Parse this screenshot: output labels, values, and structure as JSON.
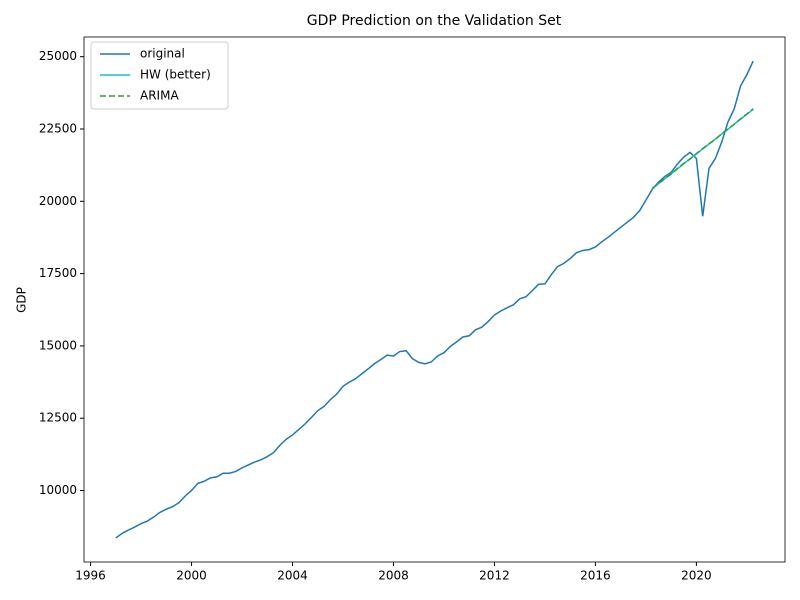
{
  "chart_data": {
    "type": "line",
    "title": "GDP Prediction on the Validation Set",
    "ylabel": "GDP",
    "xlim": [
      1995.74,
      2023.51
    ],
    "ylim": [
      7530,
      25680
    ],
    "xticks": [
      1996,
      2000,
      2004,
      2008,
      2012,
      2016,
      2020
    ],
    "yticks": [
      10000,
      12500,
      15000,
      17500,
      20000,
      22500,
      25000
    ],
    "grid": false,
    "legend": "upper left",
    "series": [
      {
        "name": "original",
        "color": "#1f77b4",
        "linestyle": "solid",
        "x": [
          1997,
          1997.25,
          1997.5,
          1997.75,
          1998,
          1998.25,
          1998.5,
          1998.75,
          1999,
          1999.25,
          1999.5,
          1999.75,
          2000,
          2000.25,
          2000.5,
          2000.75,
          2001,
          2001.25,
          2001.5,
          2001.75,
          2002,
          2002.25,
          2002.5,
          2002.75,
          2003,
          2003.25,
          2003.5,
          2003.75,
          2004,
          2004.25,
          2004.5,
          2004.75,
          2005,
          2005.25,
          2005.5,
          2005.75,
          2006,
          2006.25,
          2006.5,
          2006.75,
          2007,
          2007.25,
          2007.5,
          2007.75,
          2008,
          2008.25,
          2008.5,
          2008.75,
          2009,
          2009.25,
          2009.5,
          2009.75,
          2010,
          2010.25,
          2010.5,
          2010.75,
          2011,
          2011.25,
          2011.5,
          2011.75,
          2012,
          2012.25,
          2012.5,
          2012.75,
          2013,
          2013.25,
          2013.5,
          2013.75,
          2014,
          2014.25,
          2014.5,
          2014.75,
          2015,
          2015.25,
          2015.5,
          2015.75,
          2016,
          2016.25,
          2016.5,
          2016.75,
          2017,
          2017.25,
          2017.5,
          2017.75,
          2018,
          2018.25,
          2018.5,
          2018.75,
          2019,
          2019.25,
          2019.5,
          2019.75,
          2020,
          2020.25,
          2020.5,
          2020.75,
          2021,
          2021.25,
          2021.5,
          2021.75,
          2022,
          2022.25
        ],
        "values": [
          8362,
          8518,
          8636,
          8738,
          8856,
          8946,
          9084,
          9247,
          9357,
          9441,
          9582,
          9812,
          10002,
          10247,
          10319,
          10439,
          10472,
          10598,
          10598,
          10660,
          10784,
          10887,
          10985,
          11061,
          11175,
          11312,
          11566,
          11772,
          11923,
          12112,
          12305,
          12527,
          12762,
          12910,
          13143,
          13333,
          13604,
          13749,
          13868,
          14038,
          14209,
          14387,
          14531,
          14681,
          14652,
          14805,
          14835,
          14560,
          14430,
          14381,
          14448,
          14652,
          14765,
          14980,
          15141,
          15310,
          15351,
          15558,
          15647,
          15842,
          16068,
          16208,
          16319,
          16420,
          16630,
          16700,
          16912,
          17131,
          17144,
          17462,
          17744,
          17853,
          18022,
          18224,
          18300,
          18330,
          18422,
          18600,
          18755,
          18929,
          19100,
          19270,
          19438,
          19676,
          20040,
          20410,
          20660,
          20860,
          21000,
          21290,
          21530,
          21690,
          21480,
          19480,
          21140,
          21480,
          22040,
          22740,
          23200,
          23990,
          24380,
          24850
        ]
      },
      {
        "name": "HW (better)",
        "color": "#17becf",
        "linestyle": "solid",
        "x": [
          2018.25,
          2018.5,
          2018.75,
          2019,
          2019.25,
          2019.5,
          2019.75,
          2020,
          2020.25,
          2020.5,
          2020.75,
          2021,
          2021.25,
          2021.5,
          2021.75,
          2022,
          2022.25
        ],
        "values": [
          20430,
          20610,
          20780,
          20950,
          21120,
          21300,
          21470,
          21640,
          21810,
          21980,
          22150,
          22320,
          22490,
          22670,
          22840,
          23010,
          23180
        ]
      },
      {
        "name": "ARIMA",
        "color": "#2ca02c",
        "linestyle": "dashed",
        "x": [
          2018.25,
          2018.5,
          2018.75,
          2019,
          2019.25,
          2019.5,
          2019.75,
          2020,
          2020.25,
          2020.5,
          2020.75,
          2021,
          2021.25,
          2021.5,
          2021.75,
          2022,
          2022.25
        ],
        "values": [
          20450,
          20620,
          20790,
          20940,
          21140,
          21310,
          21460,
          21650,
          21820,
          21990,
          22140,
          22330,
          22500,
          22660,
          22850,
          23020,
          23200
        ]
      }
    ]
  }
}
